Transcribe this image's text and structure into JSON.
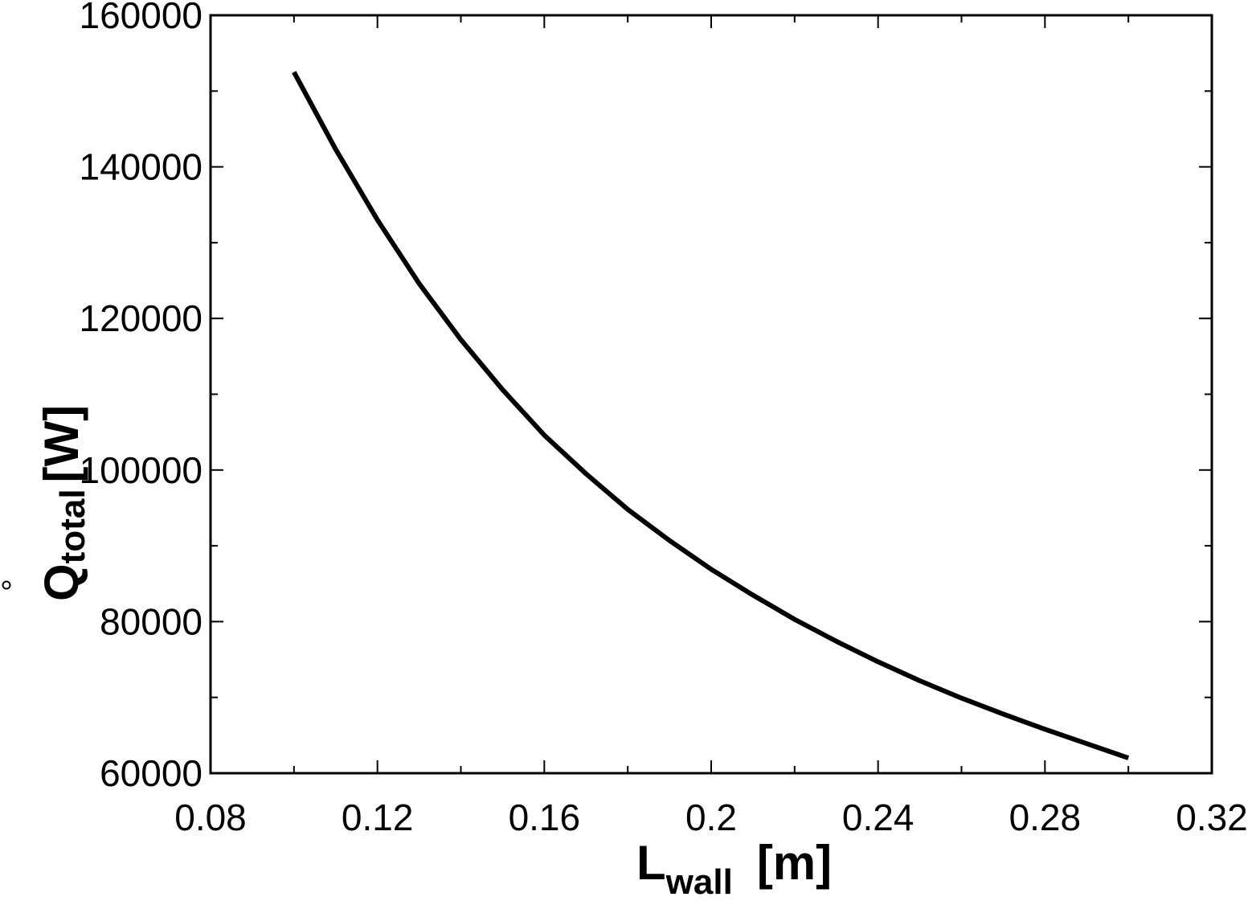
{
  "chart_data": {
    "type": "line",
    "xlabel": {
      "main": "L",
      "sub": "wall",
      "unit": "[m]"
    },
    "ylabel": {
      "main": "Q",
      "sub": "total",
      "unit": "[W]"
    },
    "xlim": [
      0.08,
      0.32
    ],
    "ylim": [
      60000,
      160000
    ],
    "x_ticks": [
      "0.08",
      "0.12",
      "0.16",
      "0.2",
      "0.24",
      "0.28",
      "0.32"
    ],
    "y_ticks": [
      "60000",
      "80000",
      "100000",
      "120000",
      "140000",
      "160000"
    ],
    "grid": false,
    "series": [
      {
        "color": "#000000",
        "x": [
          0.1,
          0.11,
          0.12,
          0.13,
          0.14,
          0.15,
          0.16,
          0.17,
          0.18,
          0.19,
          0.2,
          0.21,
          0.22,
          0.23,
          0.24,
          0.25,
          0.26,
          0.27,
          0.28,
          0.29,
          0.3
        ],
        "y": [
          152500,
          142300,
          133000,
          124600,
          117200,
          110600,
          104600,
          99500,
          94800,
          90700,
          86900,
          83500,
          80300,
          77400,
          74700,
          72200,
          69900,
          67800,
          65800,
          63900,
          62000
        ]
      }
    ]
  }
}
